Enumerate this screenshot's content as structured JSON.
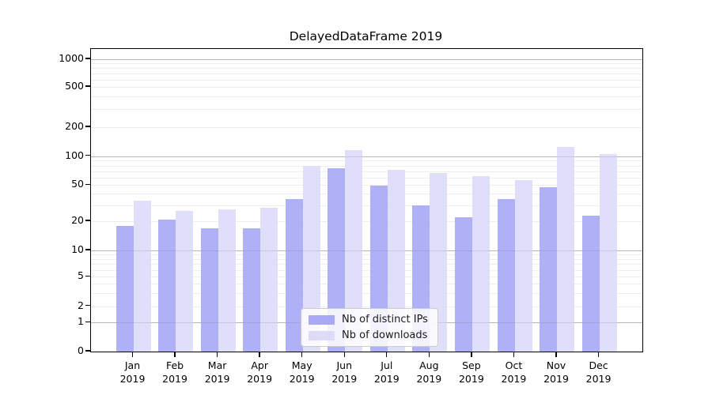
{
  "chart_data": {
    "type": "bar",
    "title": "DelayedDataFrame 2019",
    "categories": [
      "Jan",
      "Feb",
      "Mar",
      "Apr",
      "May",
      "Jun",
      "Jul",
      "Aug",
      "Sep",
      "Oct",
      "Nov",
      "Dec"
    ],
    "category_year": "2019",
    "series": [
      {
        "name": "Nb of distinct IPs",
        "color": "#a9a9f6",
        "values": [
          18,
          21,
          17,
          17,
          35,
          75,
          49,
          30,
          22,
          35,
          47,
          23
        ]
      },
      {
        "name": "Nb of downloads",
        "color": "#dcdcf8",
        "values": [
          34,
          26,
          27,
          28,
          80,
          115,
          72,
          67,
          62,
          56,
          125,
          105
        ]
      }
    ],
    "xlabel": "",
    "ylabel": "",
    "yscale": "symlog",
    "y_ticks": [
      0,
      1,
      2,
      5,
      10,
      20,
      50,
      100,
      200,
      500,
      1000
    ],
    "ylim": [
      0,
      1300
    ],
    "grid": "horizontal",
    "legend_position": "lower center"
  }
}
